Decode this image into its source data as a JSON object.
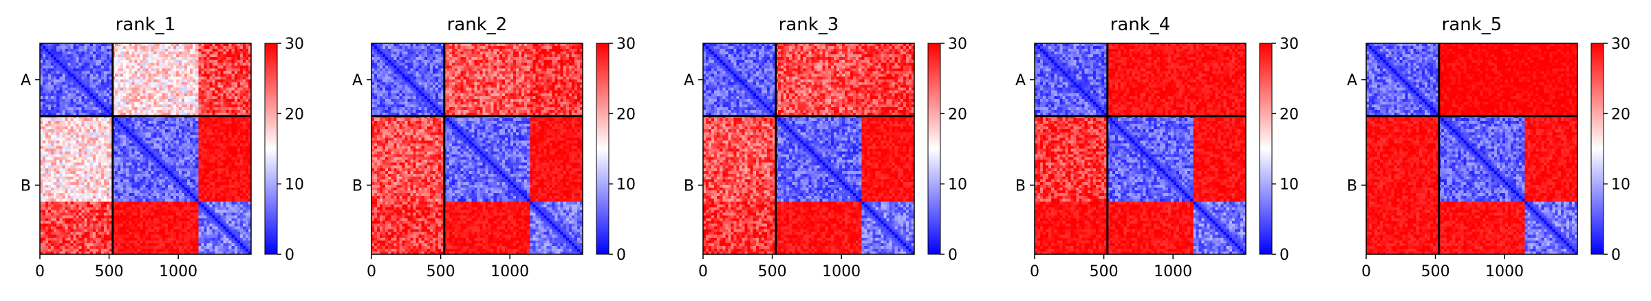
{
  "chart_data": {
    "type": "heatmap",
    "colorbar": {
      "cmap": [
        "#0000ff",
        "#ffffff",
        "#ff0000"
      ],
      "vmin": 0,
      "vmax": 30,
      "ticks": [
        "0",
        "10",
        "20",
        "30"
      ]
    },
    "x_range": [
      0,
      1526
    ],
    "x_ticks": [
      "0",
      "500",
      "1000"
    ],
    "chain_labels": [
      "A",
      "B"
    ],
    "chain_boundary": 526,
    "domain_blocks": [
      [
        0,
        526
      ],
      [
        526,
        1140
      ],
      [
        1140,
        1526
      ]
    ],
    "panels": [
      {
        "title": "rank_1",
        "block_means": [
          [
            6,
            17,
            26
          ],
          [
            17,
            6,
            29
          ],
          [
            26,
            29,
            7
          ]
        ]
      },
      {
        "title": "rank_2",
        "block_means": [
          [
            6,
            25,
            27
          ],
          [
            25,
            6,
            29
          ],
          [
            27,
            29,
            7
          ]
        ]
      },
      {
        "title": "rank_3",
        "block_means": [
          [
            6,
            25,
            27
          ],
          [
            25,
            6,
            29
          ],
          [
            27,
            29,
            7
          ]
        ]
      },
      {
        "title": "rank_4",
        "block_means": [
          [
            6,
            29,
            29
          ],
          [
            27,
            6,
            29
          ],
          [
            29,
            29,
            7
          ]
        ]
      },
      {
        "title": "rank_5",
        "block_means": [
          [
            6,
            30,
            30
          ],
          [
            29,
            6,
            29
          ],
          [
            29,
            29,
            7
          ]
        ]
      }
    ]
  }
}
